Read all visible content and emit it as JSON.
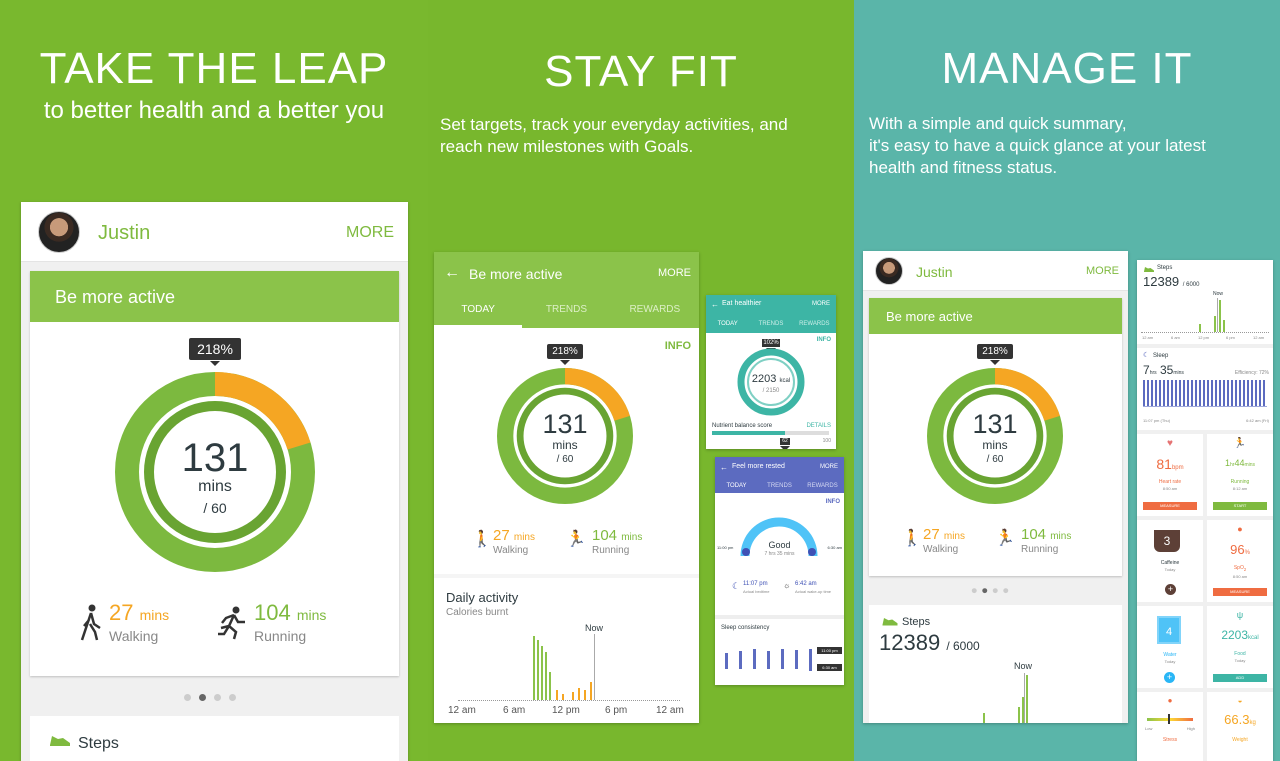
{
  "panel1": {
    "title": "TAKE THE LEAP",
    "subtitle": "to better health and a better you",
    "card": {
      "user_name": "Justin",
      "more_label": "MORE",
      "goal_title": "Be more active",
      "percent_badge": "218%",
      "value": "131",
      "unit": "mins",
      "target": "/  60",
      "walking_value": "27",
      "walking_unit": "mins",
      "walking_label": "Walking",
      "running_value": "104",
      "running_unit": "mins",
      "running_label": "Running",
      "steps_label": "Steps"
    }
  },
  "panel2": {
    "title": "STAY FIT",
    "description_line1": "Set targets, track your everyday activities, and",
    "description_line2": "reach new milestones with Goals.",
    "main_card": {
      "header_title": "Be more active",
      "more_label": "MORE",
      "tabs": [
        "TODAY",
        "TRENDS",
        "REWARDS"
      ],
      "info_label": "INFO",
      "percent_badge": "218%",
      "value": "131",
      "unit": "mins",
      "target": "/  60",
      "walking_value": "27",
      "walking_unit": "mins",
      "walking_label": "Walking",
      "running_value": "104",
      "running_unit": "mins",
      "running_label": "Running",
      "daily_title": "Daily activity",
      "daily_subtitle": "Calories burnt",
      "now_label": "Now",
      "time_labels": [
        "12 am",
        "6 am",
        "12 pm",
        "6 pm",
        "12 am"
      ]
    },
    "eat_card": {
      "header_title": "Eat healthier",
      "more_label": "MORE",
      "tabs": [
        "TODAY",
        "TRENDS",
        "REWARDS"
      ],
      "info_label": "INFO",
      "badge": "102%",
      "value": "2203",
      "unit": "kcal",
      "target": "/  2150",
      "score_label": "Nutrient balance score",
      "details_label": "DETAILS",
      "score_value": "62",
      "score_max": "100"
    },
    "rest_card": {
      "header_title": "Feel more rested",
      "more_label": "MORE",
      "tabs": [
        "TODAY",
        "TRENDS",
        "REWARDS"
      ],
      "info_label": "INFO",
      "quality": "Good",
      "duration": "7 hrs 35 mins",
      "gauge_left": "11:00 pm",
      "gauge_right": "6:30 am",
      "bedtime_value": "11:07 pm",
      "bedtime_label": "Actual bedtime",
      "wake_value": "6:42 am",
      "wake_label": "Actual wake-up time",
      "consistency_label": "Sleep consistency",
      "consistency_high": "11:00 pm",
      "consistency_low": "6:30 am"
    }
  },
  "panel3": {
    "title": "MANAGE IT",
    "description_line1": "With a simple and quick summary,",
    "description_line2": "it's easy to have a quick glance at your latest",
    "description_line3": "health and fitness status.",
    "main_card": {
      "user_name": "Justin",
      "more_label": "MORE",
      "goal_title": "Be more active",
      "percent_badge": "218%",
      "value": "131",
      "unit": "mins",
      "target": "/  60",
      "walking_value": "27",
      "walking_unit": "mins",
      "walking_label": "Walking",
      "running_value": "104",
      "running_unit": "mins",
      "running_label": "Running",
      "steps_label": "Steps",
      "steps_value": "12389",
      "steps_target": "/ 6000",
      "now_label": "Now"
    },
    "side": {
      "steps_label": "Steps",
      "steps_value": "12389",
      "steps_target": "/ 6000",
      "now_label": "Now",
      "steps_times": [
        "12 am",
        "6 am",
        "12 pm",
        "6 pm",
        "12 am"
      ],
      "sleep_label": "Sleep",
      "sleep_hours": "7",
      "sleep_hours_unit": "hrs",
      "sleep_mins": "35",
      "sleep_mins_unit": "mins",
      "efficiency": "Efficiency: 72%",
      "sleep_start": "11:07 pm (Thu)",
      "sleep_end": "6:42 am (Fri)",
      "heart_value": "81",
      "heart_unit": "bpm",
      "heart_label": "Heart rate",
      "heart_time": "8:50 am",
      "heart_button": "MEASURE",
      "run_hr": "1",
      "run_hr_unit": "hr",
      "run_min": "44",
      "run_min_unit": "mins",
      "run_label": "Running",
      "run_time": "8:12 am",
      "run_button": "START",
      "caffeine_value": "3",
      "caffeine_label": "Caffeine",
      "caffeine_sub": "Today",
      "spo2_value": "96",
      "spo2_unit": "%",
      "spo2_label": "SpO",
      "spo2_sub": "2",
      "spo2_time": "8:50 am",
      "spo2_button": "MEASURE",
      "water_value": "4",
      "water_label": "Water",
      "water_sub": "Today",
      "food_value": "2203",
      "food_unit": "kcal",
      "food_label": "Food",
      "food_sub": "Today",
      "food_button": "ADD",
      "stress_label": "Stress",
      "stress_low": "Low",
      "stress_high": "High",
      "weight_value": "66.3",
      "weight_unit": "kg",
      "weight_label": "Weight"
    }
  }
}
